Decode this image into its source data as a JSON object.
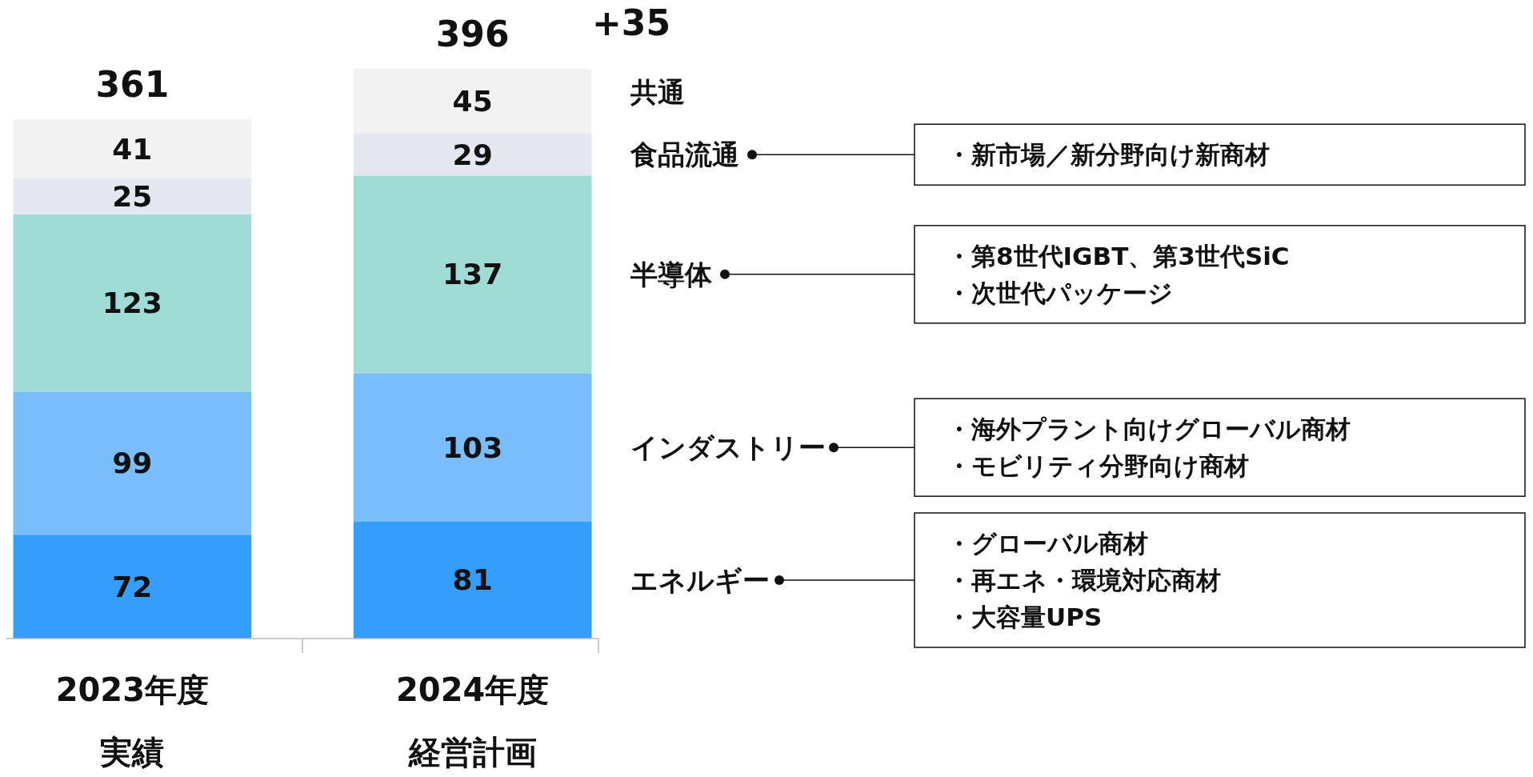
{
  "chart_data": {
    "type": "bar",
    "stacked": true,
    "data_labels": true,
    "categories": [
      "2023年度実績",
      "2024年度経営計画"
    ],
    "series": [
      {
        "name": "エネルギー",
        "color": "#359efc",
        "values": [
          72,
          81
        ]
      },
      {
        "name": "インダストリー",
        "color": "#79bdfc",
        "values": [
          99,
          103
        ]
      },
      {
        "name": "半導体",
        "color": "#a0dcd6",
        "values": [
          123,
          137
        ]
      },
      {
        "name": "食品流通",
        "color": "#e4e6f0",
        "values": [
          25,
          29
        ]
      },
      {
        "name": "共通",
        "color": "#f2f2f2",
        "values": [
          41,
          45
        ]
      }
    ],
    "totals": [
      "361",
      "396"
    ],
    "annotations": [
      "+35",
      "・新市場／新分野向け新商材",
      "・第8世代IGBT、第3世代SiC",
      "・次世代パッケージ",
      "・海外プラント向けグローバル商材",
      "・モビリティ分野向け商材",
      "・グローバル商材",
      "・再エネ・環境対応商材",
      "・大容量UPS"
    ]
  }
}
